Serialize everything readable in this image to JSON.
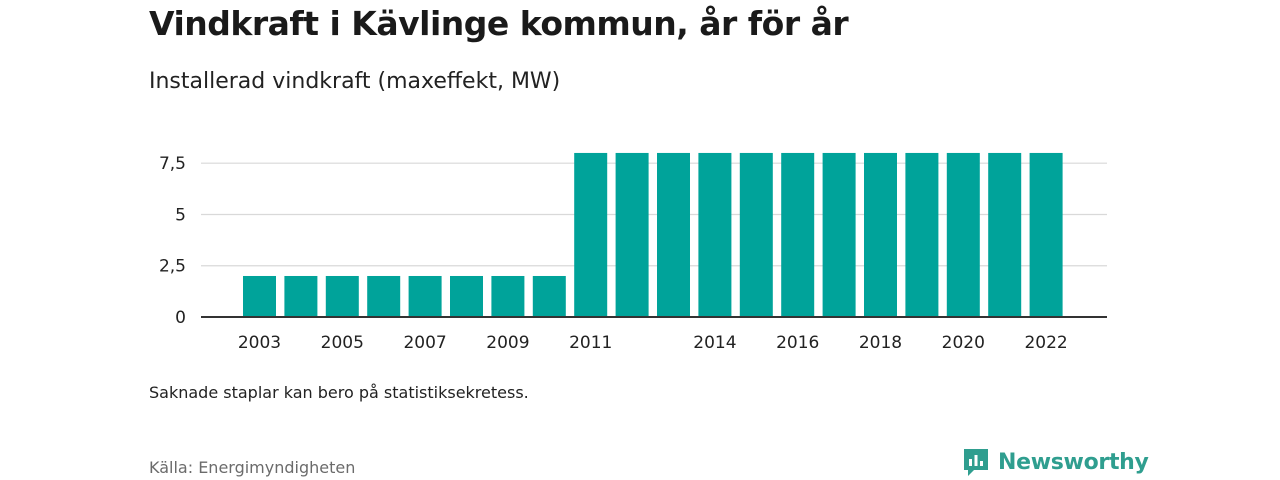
{
  "header": {
    "title": "Vindkraft i Kävlinge kommun, år för år",
    "subtitle": "Installerad vindkraft (maxeffekt, MW)"
  },
  "footer": {
    "note": "Saknade staplar kan bero på statistiksekretess.",
    "source": "Källa: Energimyndigheten",
    "brand": "Newsworthy"
  },
  "colors": {
    "bar": "#00a39a",
    "grid": "#d9d9d9",
    "axis": "#333333",
    "brand": "#2f9e8f"
  },
  "chart_data": {
    "type": "bar",
    "categories": [
      "2003",
      "2004",
      "2005",
      "2006",
      "2007",
      "2008",
      "2009",
      "2010",
      "2011",
      "2012",
      "2013",
      "2014",
      "2015",
      "2016",
      "2017",
      "2018",
      "2019",
      "2020",
      "2021",
      "2022"
    ],
    "values": [
      2,
      2,
      2,
      2,
      2,
      2,
      2,
      2,
      8,
      8,
      8,
      8,
      8,
      8,
      8,
      8,
      8,
      8,
      8,
      8
    ],
    "x_tick_labels": [
      "2003",
      "2005",
      "2007",
      "2009",
      "2011",
      "2014",
      "2016",
      "2018",
      "2020",
      "2022"
    ],
    "y_ticks": [
      0,
      2.5,
      5,
      7.5
    ],
    "y_tick_labels": [
      "0",
      "2,5",
      "5",
      "7,5"
    ],
    "ylim": [
      0,
      7.9
    ],
    "xlabel": "",
    "ylabel": "",
    "grid": true
  }
}
